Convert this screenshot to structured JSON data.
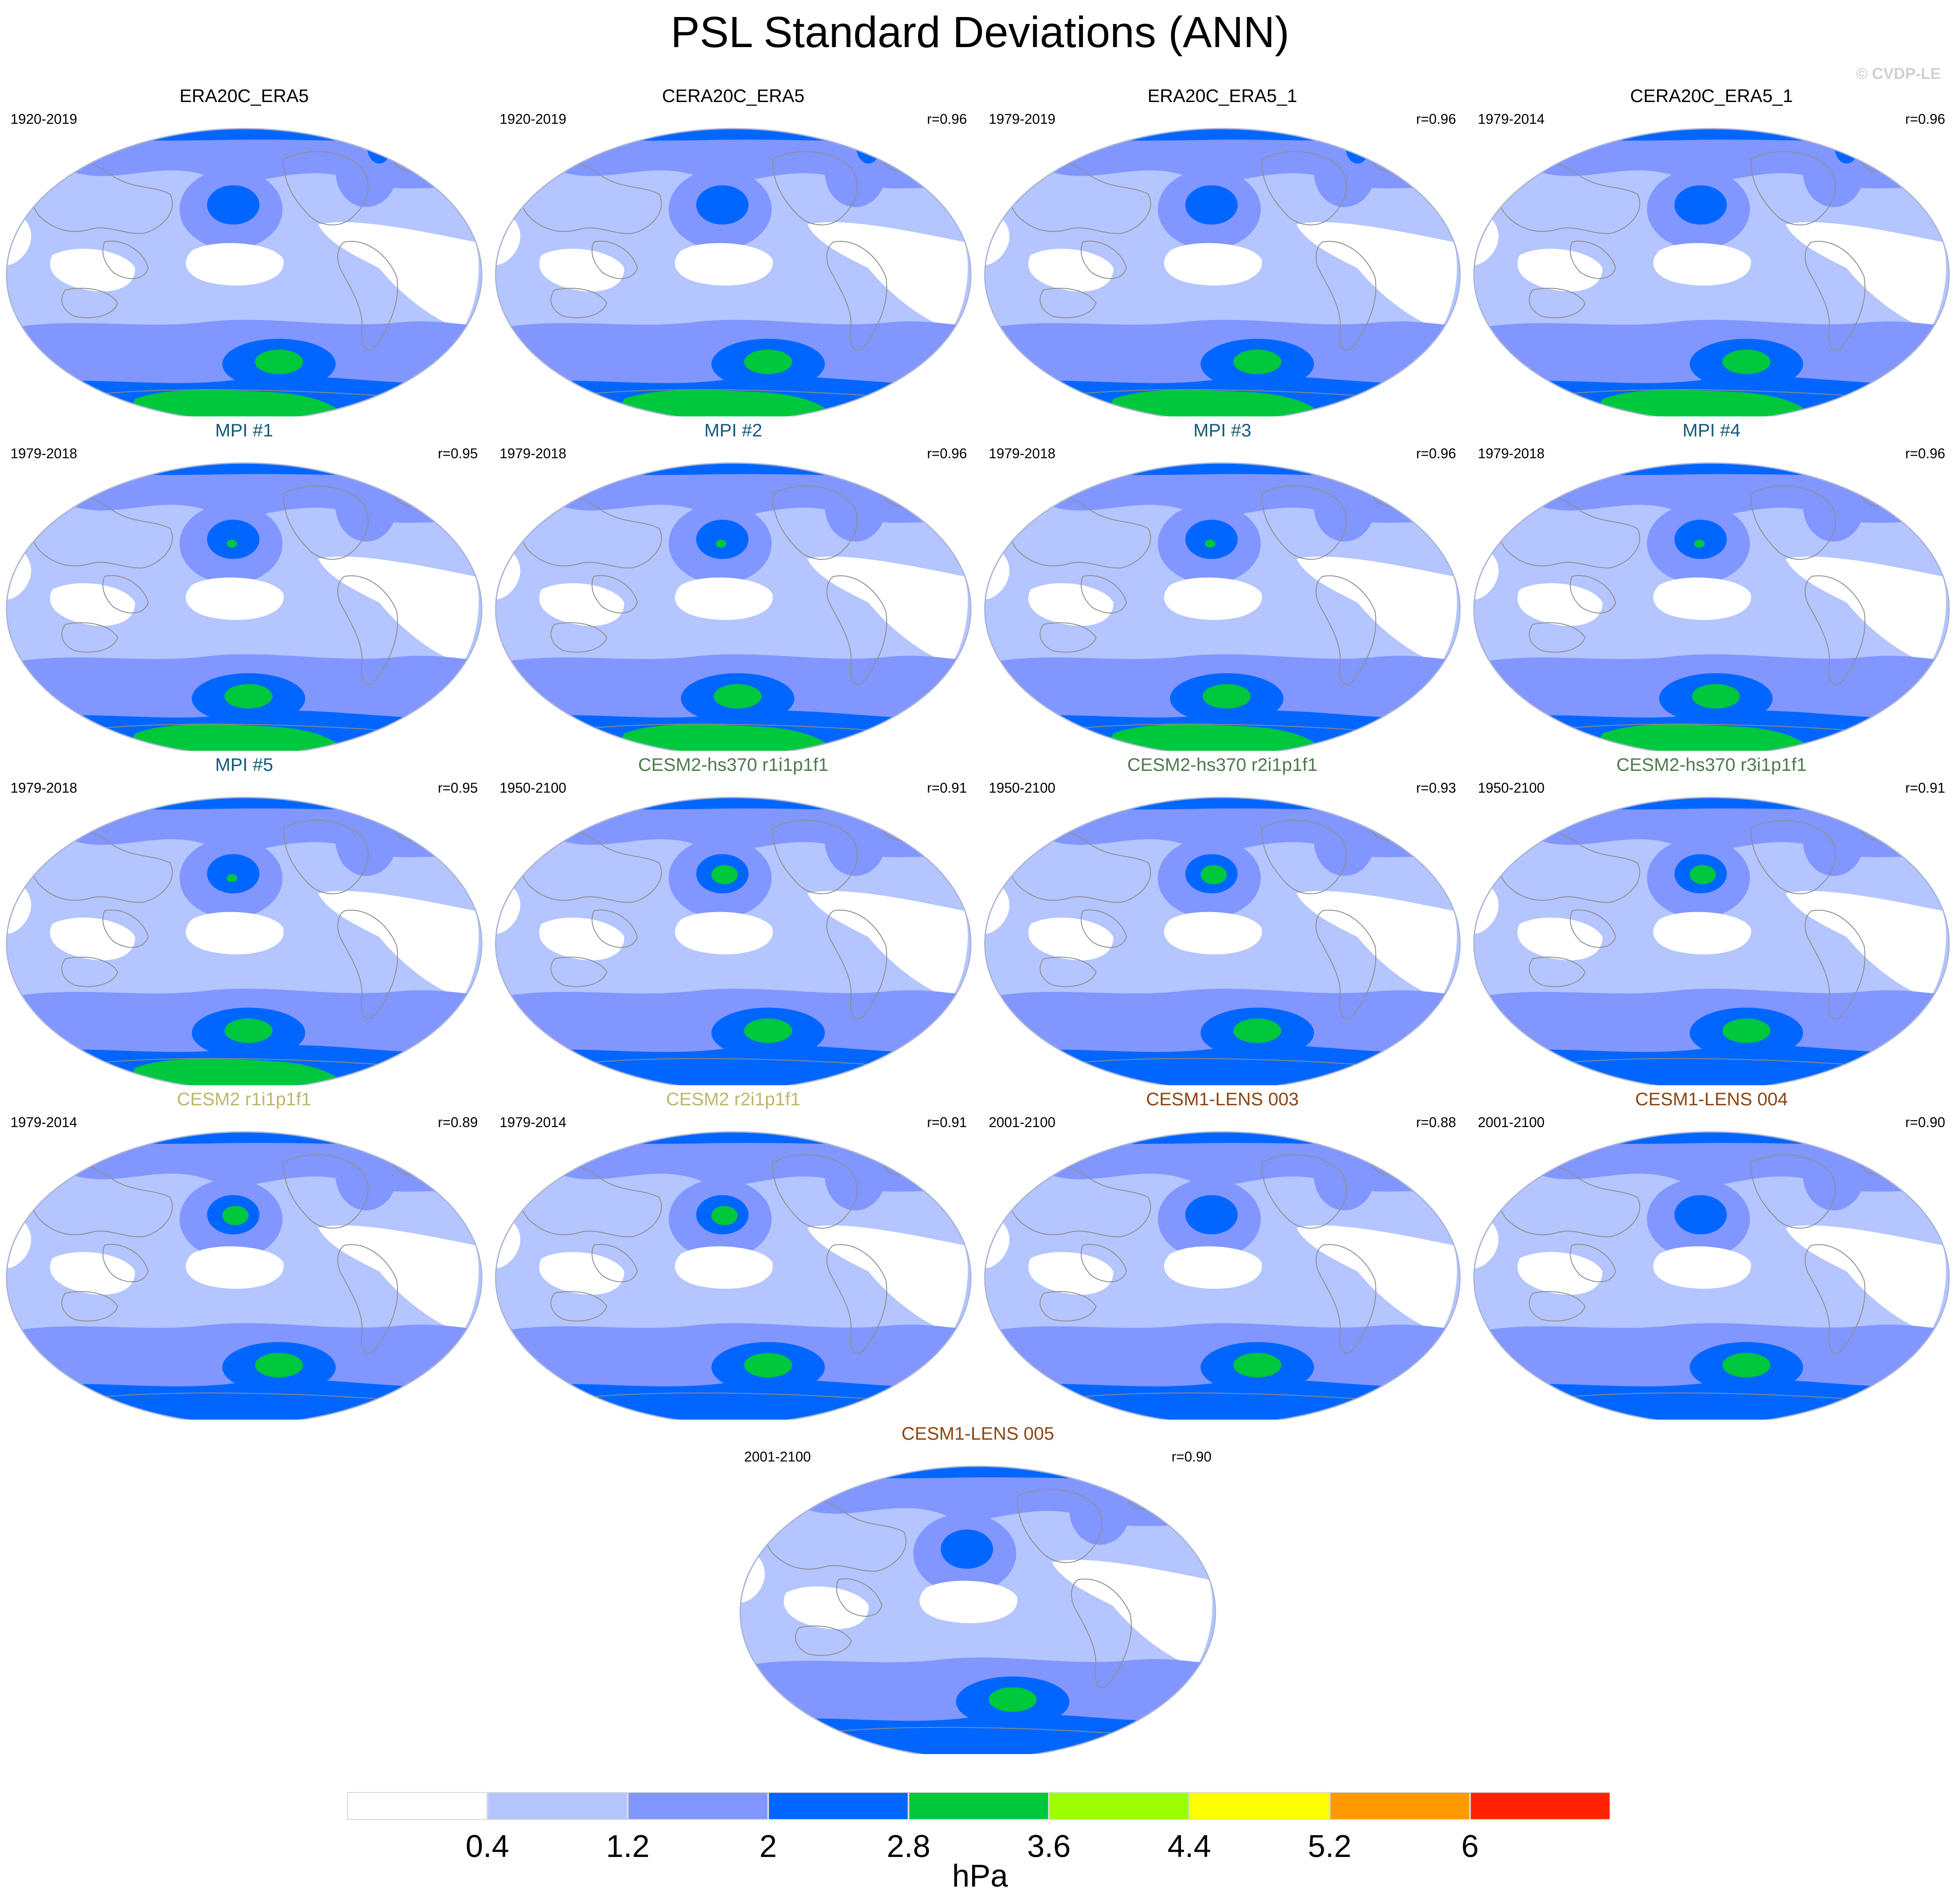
{
  "title": "PSL Standard Deviations (ANN)",
  "watermark": "© CVDP-LE",
  "colors": {
    "title_obs": "#000000",
    "title_mpi": "#145a78",
    "title_cesm2_hs370": "#4d7a4d",
    "title_cesm2": "#bfb56a",
    "title_cesm1": "#8b4513",
    "coast": "#8c8c8c",
    "outline": "#aab4d8"
  },
  "panels": [
    {
      "title": "ERA20C_ERA5",
      "period": "1920-2019",
      "corr": "",
      "title_color": "#000000",
      "group": "obs"
    },
    {
      "title": "CERA20C_ERA5",
      "period": "1920-2019",
      "corr": "r=0.96",
      "title_color": "#000000",
      "group": "obs"
    },
    {
      "title": "ERA20C_ERA5_1",
      "period": "1979-2019",
      "corr": "r=0.96",
      "title_color": "#000000",
      "group": "obs"
    },
    {
      "title": "CERA20C_ERA5_1",
      "period": "1979-2014",
      "corr": "r=0.96",
      "title_color": "#000000",
      "group": "obs"
    },
    {
      "title": "MPI #1",
      "period": "1979-2018",
      "corr": "r=0.95",
      "title_color": "#145a78",
      "group": "mpi"
    },
    {
      "title": "MPI #2",
      "period": "1979-2018",
      "corr": "r=0.96",
      "title_color": "#145a78",
      "group": "mpi"
    },
    {
      "title": "MPI #3",
      "period": "1979-2018",
      "corr": "r=0.96",
      "title_color": "#145a78",
      "group": "mpi"
    },
    {
      "title": "MPI #4",
      "period": "1979-2018",
      "corr": "r=0.96",
      "title_color": "#145a78",
      "group": "mpi"
    },
    {
      "title": "MPI #5",
      "period": "1979-2018",
      "corr": "r=0.95",
      "title_color": "#145a78",
      "group": "mpi"
    },
    {
      "title": "CESM2-hs370 r1i1p1f1",
      "period": "1950-2100",
      "corr": "r=0.91",
      "title_color": "#4d7a4d",
      "group": "cesm2hs"
    },
    {
      "title": "CESM2-hs370 r2i1p1f1",
      "period": "1950-2100",
      "corr": "r=0.93",
      "title_color": "#4d7a4d",
      "group": "cesm2hs"
    },
    {
      "title": "CESM2-hs370 r3i1p1f1",
      "period": "1950-2100",
      "corr": "r=0.91",
      "title_color": "#4d7a4d",
      "group": "cesm2hs"
    },
    {
      "title": "CESM2 r1i1p1f1",
      "period": "1979-2014",
      "corr": "r=0.89",
      "title_color": "#bfb56a",
      "group": "cesm2"
    },
    {
      "title": "CESM2 r2i1p1f1",
      "period": "1979-2014",
      "corr": "r=0.91",
      "title_color": "#bfb56a",
      "group": "cesm2"
    },
    {
      "title": "CESM1-LENS 003",
      "period": "2001-2100",
      "corr": "r=0.88",
      "title_color": "#8b4513",
      "group": "cesm1"
    },
    {
      "title": "CESM1-LENS 004",
      "period": "2001-2100",
      "corr": "r=0.90",
      "title_color": "#8b4513",
      "group": "cesm1"
    },
    {
      "title": "CESM1-LENS 005",
      "period": "2001-2100",
      "corr": "r=0.90",
      "title_color": "#8b4513",
      "group": "cesm1"
    }
  ],
  "colorbar": {
    "colors": [
      "#ffffff",
      "#b4c5ff",
      "#8196ff",
      "#0066ff",
      "#00c83c",
      "#9bff00",
      "#ffff00",
      "#ff9900",
      "#ff2200"
    ],
    "tick_labels": [
      "0.4",
      "1.2",
      "2",
      "2.8",
      "3.6",
      "4.4",
      "5.2",
      "6"
    ],
    "units": "hPa"
  }
}
